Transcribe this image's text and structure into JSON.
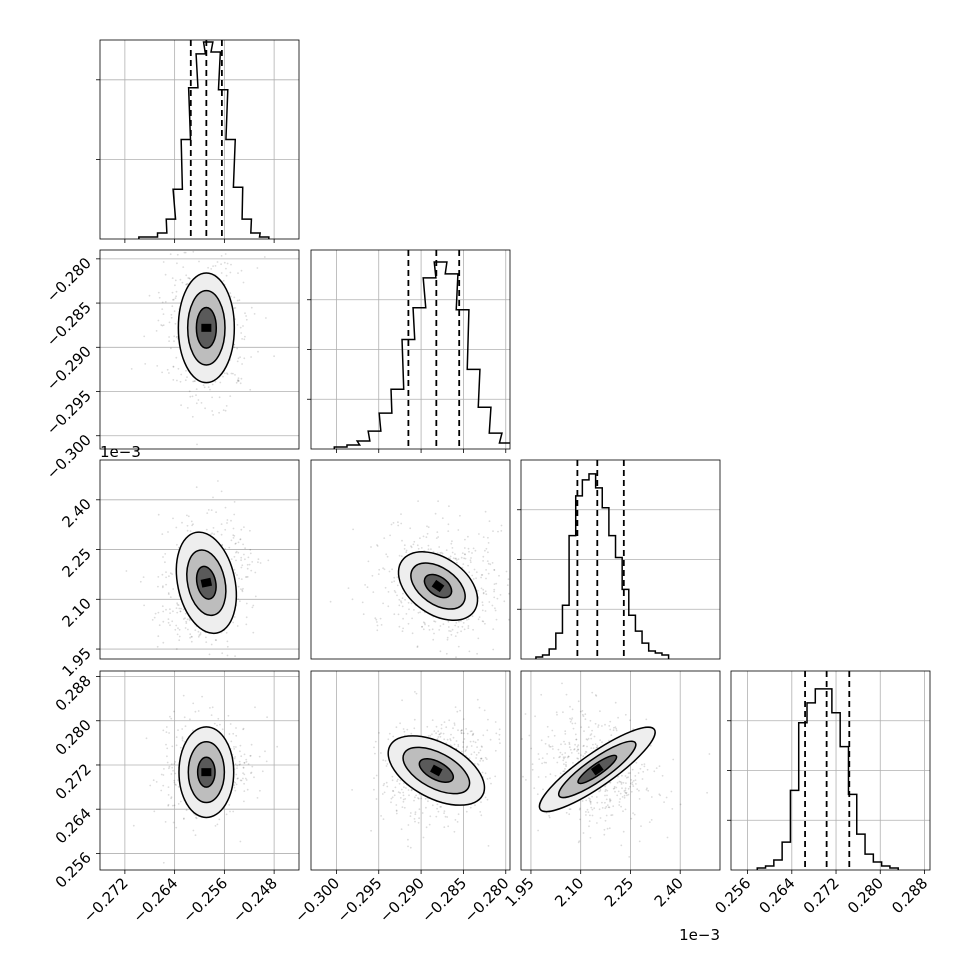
{
  "chart_data": {
    "type": "corner",
    "parameters": 4,
    "panels": [
      {
        "row": 0,
        "col": 0,
        "type": "histogram",
        "xlim": [
          -0.276,
          -0.244
        ],
        "ylim": [
          0,
          1
        ],
        "bins": [
          {
            "x": -0.269,
            "y": 0.01
          },
          {
            "x": -0.2675,
            "y": 0.01
          },
          {
            "x": -0.266,
            "y": 0.03
          },
          {
            "x": -0.2646,
            "y": 0.1
          },
          {
            "x": -0.2635,
            "y": 0.25
          },
          {
            "x": -0.2622,
            "y": 0.5
          },
          {
            "x": -0.261,
            "y": 0.76
          },
          {
            "x": -0.2598,
            "y": 0.93
          },
          {
            "x": -0.2586,
            "y": 0.99
          },
          {
            "x": -0.2574,
            "y": 0.94
          },
          {
            "x": -0.2562,
            "y": 0.75
          },
          {
            "x": -0.255,
            "y": 0.5
          },
          {
            "x": -0.2538,
            "y": 0.26
          },
          {
            "x": -0.2524,
            "y": 0.1
          },
          {
            "x": -0.251,
            "y": 0.03
          },
          {
            "x": -0.2496,
            "y": 0.01
          }
        ],
        "quantiles": [
          -0.2614,
          -0.2589,
          -0.2564
        ],
        "x_ticks": [
          -0.272,
          -0.264,
          -0.256,
          -0.248
        ],
        "x_tick_labels": [
          "",
          "",
          "",
          ""
        ],
        "y_ticks": [
          0.4,
          0.8
        ],
        "y_tick_labels": [
          "",
          ""
        ]
      },
      {
        "row": 1,
        "col": 0,
        "type": "contour",
        "xlim": [
          -0.276,
          -0.244
        ],
        "ylim": [
          -0.3015,
          -0.279
        ],
        "center": [
          -0.2589,
          -0.2878
        ],
        "cloud_sigma": [
          0.003,
          0.0035
        ],
        "levels": [
          {
            "rx": 0.0045,
            "ry": 0.0062,
            "fill": "#eeeeee"
          },
          {
            "rx": 0.003,
            "ry": 0.0042,
            "fill": "#bdbdbd"
          },
          {
            "rx": 0.0016,
            "ry": 0.0023,
            "fill": "#5a5a5a"
          }
        ],
        "rotation": 0,
        "y_ticks": [
          -0.3,
          -0.295,
          -0.29,
          -0.285,
          -0.28
        ],
        "y_tick_labels": [
          "−0.300",
          "−0.295",
          "−0.290",
          "−0.285",
          "−0.280"
        ]
      },
      {
        "row": 1,
        "col": 1,
        "type": "histogram",
        "xlim": [
          -0.303,
          -0.2795
        ],
        "ylim": [
          0,
          1
        ],
        "bins": [
          {
            "x": -0.2995,
            "y": 0.01
          },
          {
            "x": -0.298,
            "y": 0.02
          },
          {
            "x": -0.2968,
            "y": 0.04
          },
          {
            "x": -0.2955,
            "y": 0.09
          },
          {
            "x": -0.2942,
            "y": 0.18
          },
          {
            "x": -0.2928,
            "y": 0.3
          },
          {
            "x": -0.2915,
            "y": 0.55
          },
          {
            "x": -0.2902,
            "y": 0.71
          },
          {
            "x": -0.289,
            "y": 0.86
          },
          {
            "x": -0.2877,
            "y": 0.94
          },
          {
            "x": -0.2864,
            "y": 0.88
          },
          {
            "x": -0.2851,
            "y": 0.7
          },
          {
            "x": -0.2838,
            "y": 0.4
          },
          {
            "x": -0.2825,
            "y": 0.21
          },
          {
            "x": -0.2812,
            "y": 0.08
          },
          {
            "x": -0.28,
            "y": 0.03
          }
        ],
        "quantiles": [
          -0.2915,
          -0.2882,
          -0.2855
        ],
        "x_ticks": [
          -0.3,
          -0.295,
          -0.29,
          -0.285,
          -0.28
        ],
        "x_tick_labels": [
          "",
          "",
          "",
          "",
          ""
        ],
        "y_ticks": [
          0.25,
          0.5,
          0.75
        ],
        "y_tick_labels": [
          "",
          "",
          ""
        ]
      },
      {
        "row": 2,
        "col": 0,
        "type": "contour",
        "xlim": [
          -0.276,
          -0.244
        ],
        "ylim": [
          1.92,
          2.52
        ],
        "center": [
          -0.2589,
          2.15
        ],
        "cloud_sigma": [
          0.003,
          0.085
        ],
        "levels": [
          {
            "rx": 0.0046,
            "ry": 0.155,
            "fill": "#eeeeee"
          },
          {
            "rx": 0.003,
            "ry": 0.1,
            "fill": "#bdbdbd"
          },
          {
            "rx": 0.0015,
            "ry": 0.05,
            "fill": "#5a5a5a"
          }
        ],
        "rotation": -12,
        "y_ticks": [
          1.95,
          2.1,
          2.25,
          2.4
        ],
        "y_tick_labels": [
          "1.95",
          "2.10",
          "2.25",
          "2.40"
        ],
        "y_offset_label": "1e−3"
      },
      {
        "row": 2,
        "col": 1,
        "type": "contour",
        "xlim": [
          -0.303,
          -0.2795
        ],
        "ylim": [
          1.92,
          2.52
        ],
        "center": [
          -0.288,
          2.14
        ],
        "cloud_sigma": [
          0.003,
          0.085
        ],
        "levels": [
          {
            "rx": 0.0052,
            "ry": 0.085,
            "fill": "#eeeeee"
          },
          {
            "rx": 0.0036,
            "ry": 0.055,
            "fill": "#bdbdbd"
          },
          {
            "rx": 0.0018,
            "ry": 0.028,
            "fill": "#5a5a5a"
          }
        ],
        "rotation": 35
      },
      {
        "row": 2,
        "col": 2,
        "type": "histogram",
        "xlim": [
          1.92,
          2.52
        ],
        "ylim": [
          0,
          1
        ],
        "bins": [
          {
            "x": 1.975,
            "y": 0.01
          },
          {
            "x": 1.995,
            "y": 0.02
          },
          {
            "x": 2.015,
            "y": 0.05
          },
          {
            "x": 2.035,
            "y": 0.13
          },
          {
            "x": 2.055,
            "y": 0.27
          },
          {
            "x": 2.075,
            "y": 0.62
          },
          {
            "x": 2.095,
            "y": 0.82
          },
          {
            "x": 2.115,
            "y": 0.9
          },
          {
            "x": 2.135,
            "y": 0.93
          },
          {
            "x": 2.155,
            "y": 0.86
          },
          {
            "x": 2.175,
            "y": 0.76
          },
          {
            "x": 2.195,
            "y": 0.62
          },
          {
            "x": 2.215,
            "y": 0.51
          },
          {
            "x": 2.235,
            "y": 0.35
          },
          {
            "x": 2.255,
            "y": 0.22
          },
          {
            "x": 2.275,
            "y": 0.14
          },
          {
            "x": 2.295,
            "y": 0.08
          },
          {
            "x": 2.315,
            "y": 0.04
          },
          {
            "x": 2.335,
            "y": 0.03
          },
          {
            "x": 2.355,
            "y": 0.02
          }
        ],
        "quantiles": [
          2.09,
          2.15,
          2.23
        ],
        "y_ticks": [
          0.25,
          0.5,
          0.75
        ],
        "y_tick_labels": [
          "",
          "",
          ""
        ]
      },
      {
        "row": 3,
        "col": 0,
        "type": "contour",
        "xlim": [
          -0.276,
          -0.244
        ],
        "ylim": [
          0.253,
          0.289
        ],
        "center": [
          -0.2589,
          0.2707
        ],
        "cloud_sigma": [
          0.003,
          0.004
        ],
        "levels": [
          {
            "rx": 0.0044,
            "ry": 0.0082,
            "fill": "#eeeeee"
          },
          {
            "rx": 0.0029,
            "ry": 0.0055,
            "fill": "#bdbdbd"
          },
          {
            "rx": 0.0014,
            "ry": 0.0027,
            "fill": "#5a5a5a"
          }
        ],
        "rotation": 0,
        "x_ticks": [
          -0.272,
          -0.264,
          -0.256,
          -0.248
        ],
        "x_tick_labels": [
          "−0.272",
          "−0.264",
          "−0.256",
          "−0.248"
        ],
        "y_ticks": [
          0.256,
          0.264,
          0.272,
          0.28,
          0.288
        ],
        "y_tick_labels": [
          "0.256",
          "0.264",
          "0.272",
          "0.280",
          "0.288"
        ]
      },
      {
        "row": 3,
        "col": 1,
        "type": "contour",
        "xlim": [
          -0.303,
          -0.2795
        ],
        "ylim": [
          0.253,
          0.289
        ],
        "center": [
          -0.2882,
          0.271
        ],
        "cloud_sigma": [
          0.003,
          0.004
        ],
        "levels": [
          {
            "rx": 0.0062,
            "ry": 0.005,
            "fill": "#eeeeee"
          },
          {
            "rx": 0.0043,
            "ry": 0.0032,
            "fill": "#bdbdbd"
          },
          {
            "rx": 0.0022,
            "ry": 0.0016,
            "fill": "#5a5a5a"
          }
        ],
        "rotation": 28,
        "x_ticks": [
          -0.3,
          -0.295,
          -0.29,
          -0.285,
          -0.28
        ],
        "x_tick_labels": [
          "−0.300",
          "−0.295",
          "−0.290",
          "−0.285",
          "−0.280"
        ]
      },
      {
        "row": 3,
        "col": 2,
        "type": "contour",
        "xlim": [
          1.92,
          2.52
        ],
        "ylim": [
          0.253,
          0.289
        ],
        "center": [
          2.15,
          0.2712
        ],
        "cloud_sigma": [
          0.085,
          0.004
        ],
        "levels": [
          {
            "rx": 0.21,
            "ry": 0.003,
            "fill": "#eeeeee"
          },
          {
            "rx": 0.14,
            "ry": 0.002,
            "fill": "#bdbdbd"
          },
          {
            "rx": 0.07,
            "ry": 0.001,
            "fill": "#5a5a5a"
          }
        ],
        "rotation": -35,
        "x_ticks": [
          1.95,
          2.1,
          2.25,
          2.4
        ],
        "x_tick_labels": [
          "1.95",
          "2.10",
          "2.25",
          "2.40"
        ],
        "x_offset_label": "1e−3"
      },
      {
        "row": 3,
        "col": 3,
        "type": "histogram",
        "xlim": [
          0.253,
          0.289
        ],
        "ylim": [
          0,
          1
        ],
        "bins": [
          {
            "x": 0.2585,
            "y": 0.01
          },
          {
            "x": 0.26,
            "y": 0.02
          },
          {
            "x": 0.2615,
            "y": 0.05
          },
          {
            "x": 0.263,
            "y": 0.14
          },
          {
            "x": 0.2645,
            "y": 0.4
          },
          {
            "x": 0.266,
            "y": 0.74
          },
          {
            "x": 0.2675,
            "y": 0.84
          },
          {
            "x": 0.269,
            "y": 0.91
          },
          {
            "x": 0.2705,
            "y": 0.91
          },
          {
            "x": 0.272,
            "y": 0.79
          },
          {
            "x": 0.2735,
            "y": 0.62
          },
          {
            "x": 0.275,
            "y": 0.38
          },
          {
            "x": 0.2765,
            "y": 0.18
          },
          {
            "x": 0.278,
            "y": 0.08
          },
          {
            "x": 0.2795,
            "y": 0.04
          },
          {
            "x": 0.281,
            "y": 0.02
          },
          {
            "x": 0.2825,
            "y": 0.01
          }
        ],
        "quantiles": [
          0.2664,
          0.2703,
          0.2744
        ],
        "x_ticks": [
          0.256,
          0.264,
          0.272,
          0.28,
          0.288
        ],
        "x_tick_labels": [
          "0.256",
          "0.264",
          "0.272",
          "0.280",
          "0.288"
        ],
        "y_ticks": [
          0.25,
          0.5,
          0.75
        ],
        "y_tick_labels": [
          "",
          "",
          ""
        ]
      }
    ]
  }
}
